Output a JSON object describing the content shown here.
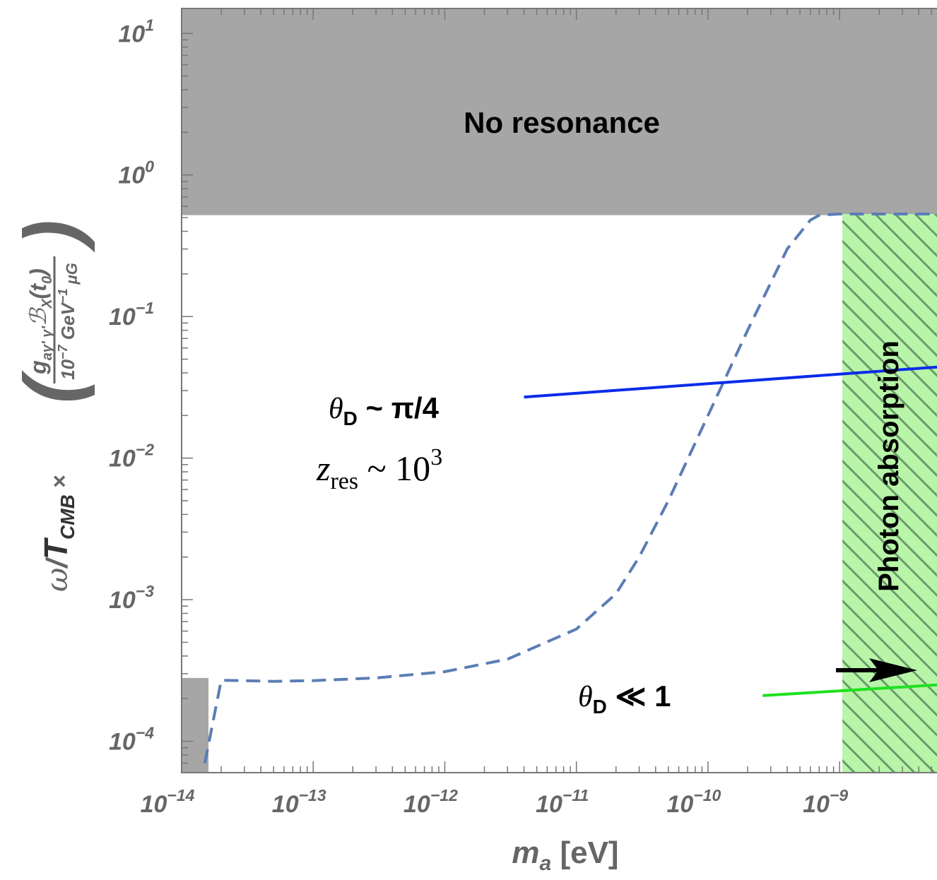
{
  "chart_data": {
    "type": "line",
    "xscale": "log",
    "yscale": "log",
    "xlim": [
      1e-14,
      5.5e-09
    ],
    "ylim": [
      6e-05,
      15
    ],
    "x_tick_labels": [
      {
        "base": "10",
        "exp": "−14",
        "value": 1e-14
      },
      {
        "base": "10",
        "exp": "−13",
        "value": 1e-13
      },
      {
        "base": "10",
        "exp": "−12",
        "value": 1e-12
      },
      {
        "base": "10",
        "exp": "−11",
        "value": 1e-11
      },
      {
        "base": "10",
        "exp": "−10",
        "value": 1e-10
      },
      {
        "base": "10",
        "exp": "−9",
        "value": 1e-09
      }
    ],
    "y_tick_labels": [
      {
        "base": "10",
        "exp": "1",
        "value": 10
      },
      {
        "base": "10",
        "exp": "0",
        "value": 1
      },
      {
        "base": "10",
        "exp": "−1",
        "value": 0.1
      },
      {
        "base": "10",
        "exp": "−2",
        "value": 0.01
      },
      {
        "base": "10",
        "exp": "−3",
        "value": 0.001
      },
      {
        "base": "10",
        "exp": "−4",
        "value": 0.0001
      }
    ],
    "xlabel": {
      "main": "m",
      "sub": "a",
      "unit": " [eV]"
    },
    "ylabel": {
      "prefix_omega": "ω",
      "prefix_slash": "/",
      "prefix_T": "T",
      "prefix_T_sub": "CMB",
      "times": " × ",
      "num": "g",
      "num_sub": "aγ' γ'",
      "num_B": "ℬ",
      "num_B_sub": "X",
      "num_arg": "(t",
      "num_arg_sub": "0",
      "num_arg_close": ")",
      "den": "10",
      "den_exp": "−7",
      "den_unit1": " GeV",
      "den_unit1_exp": "−1",
      "den_unit2": " μG"
    },
    "series": [
      {
        "style": "dashed",
        "color": "#5b7db5",
        "x": [
          1.5e-14,
          2e-14,
          5e-14,
          1e-13,
          3e-13,
          1e-12,
          3e-12,
          1e-11,
          2e-11,
          3e-11,
          5e-11,
          1e-10,
          2e-10,
          4e-10,
          6e-10,
          7e-10,
          1e-09,
          5.5e-09
        ],
        "y": [
          7e-05,
          0.00027,
          0.000265,
          0.000268,
          0.00028,
          0.00031,
          0.00038,
          0.00062,
          0.0011,
          0.002,
          0.005,
          0.02,
          0.08,
          0.3,
          0.48,
          0.52,
          0.53,
          0.53
        ]
      },
      {
        "name": "θD ~ π/4",
        "style": "solid",
        "color": "#0b2bea",
        "x": [
          4e-12,
          5.5e-09
        ],
        "y": [
          0.027,
          0.044
        ]
      },
      {
        "name": "θD ≪ 1",
        "style": "solid",
        "color": "#1fe01f",
        "x": [
          2.6e-10,
          5.5e-09
        ],
        "y": [
          0.00021,
          0.00025
        ]
      }
    ],
    "regions": [
      {
        "label": "No resonance",
        "color": "#a6a6a6",
        "x": [
          1e-14,
          5.5e-09
        ],
        "y": [
          0.52,
          15
        ]
      },
      {
        "label": "",
        "color": "#a6a6a6",
        "x": [
          1e-14,
          1.6e-14
        ],
        "y": [
          6e-05,
          0.00028
        ]
      },
      {
        "label": "Photon absorption",
        "color": "#b8f5a8",
        "hatch": "#77aa77",
        "x": [
          1.05e-09,
          5.5e-09
        ],
        "y": [
          6e-05,
          0.53
        ]
      }
    ],
    "annotations": {
      "theta_pi4": {
        "theta": "θ",
        "sub": "D",
        "rest": " ~ π/4"
      },
      "z_res": {
        "z": "z",
        "sub": "res",
        "rest": " ~ 10",
        "exp": "3"
      },
      "theta_small": {
        "theta": "θ",
        "sub": "D",
        "rest": " ≪ 1"
      }
    },
    "grid": false,
    "legend": "none"
  }
}
